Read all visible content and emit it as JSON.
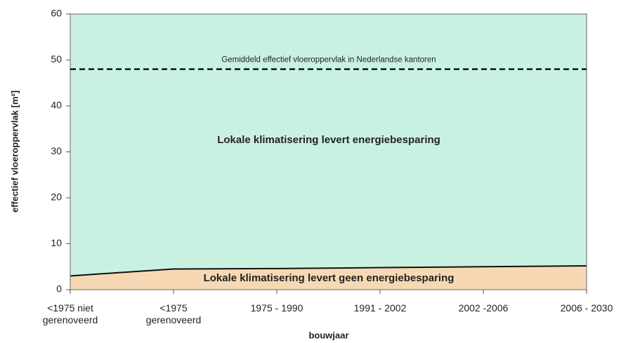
{
  "chart_data": {
    "type": "area",
    "categories": [
      "<1975 niet\ngerenoveerd",
      "<1975\ngerenoveerd",
      "1975 - 1990",
      "1991 - 2002",
      "2002 -2006",
      "2006 - 2030"
    ],
    "values": [
      3,
      4.5,
      4.6,
      4.8,
      5.0,
      5.2
    ],
    "color": "#f6d9b4",
    "background_color": "#c9f1e1",
    "ylim": [
      0,
      60
    ],
    "yticks": [
      0,
      10,
      20,
      30,
      40,
      50,
      60
    ],
    "ylabel": "effectief vloeroppervlak [m²]",
    "xlabel": "bouwjaar",
    "reference_line": {
      "value": 48,
      "label": "Gemiddeld effectief vloeroppervlak in Nederlandse kantoren"
    },
    "annotations": [
      "Lokale klimatisering levert energiebesparing",
      "Lokale klimatisering levert geen energiebesparing"
    ]
  }
}
